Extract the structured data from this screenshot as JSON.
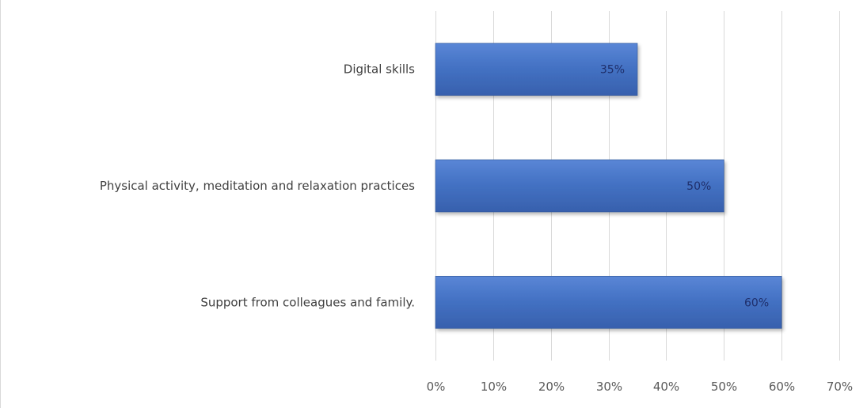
{
  "chart_data": {
    "type": "bar",
    "orientation": "horizontal",
    "categories": [
      "Digital skills",
      "Physical activity, meditation and relaxation practices",
      "Support from colleagues and family."
    ],
    "values": [
      35,
      50,
      60
    ],
    "value_unit": "%",
    "data_labels": [
      "35%",
      "50%",
      "60%"
    ],
    "xlim": [
      0,
      70
    ],
    "x_ticks": [
      0,
      10,
      20,
      30,
      40,
      50,
      60,
      70
    ],
    "x_tick_labels": [
      "0%",
      "10%",
      "20%",
      "30%",
      "40%",
      "50%",
      "60%",
      "70%"
    ],
    "title": "",
    "xlabel": "",
    "ylabel": "",
    "grid": "vertical",
    "legend": "none",
    "bar_color": "#4472c4",
    "bar_color_dark": "#2f5597",
    "grid_color": "#d9d9d9"
  }
}
